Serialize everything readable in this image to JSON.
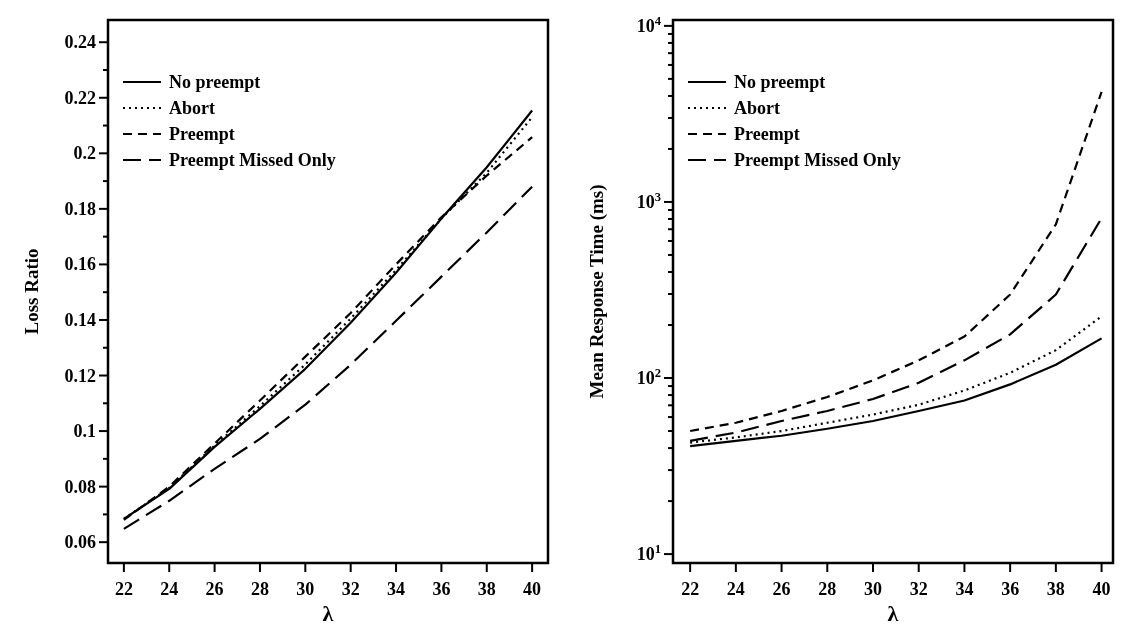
{
  "chart_data": [
    {
      "type": "line",
      "xlabel": "λ",
      "ylabel": "Loss Ratio",
      "x": [
        22,
        24,
        26,
        28,
        30,
        32,
        34,
        36,
        38,
        40
      ],
      "xlim": [
        21.3,
        40.7
      ],
      "xticks": [
        22,
        24,
        26,
        28,
        30,
        32,
        34,
        36,
        38,
        40
      ],
      "ylim": [
        0.0525,
        0.248
      ],
      "yticks": [
        0.06,
        {
          "value": 0.07,
          "label": null
        },
        0.08,
        {
          "value": 0.09,
          "label": null
        },
        0.1,
        {
          "value": 0.11,
          "label": null
        },
        0.12,
        {
          "value": 0.13,
          "label": null
        },
        0.14,
        {
          "value": 0.15,
          "label": null
        },
        0.16,
        {
          "value": 0.17,
          "label": null
        },
        0.18,
        {
          "value": 0.19,
          "label": null
        },
        0.2,
        {
          "value": 0.21,
          "label": null
        },
        0.22,
        {
          "value": 0.23,
          "label": null
        },
        0.24
      ],
      "grid": false,
      "legend": "top left",
      "series": [
        {
          "name": "No preempt",
          "color": "#000000",
          "line_style": "solid",
          "values": [
            0.0684,
            0.0792,
            0.0943,
            0.108,
            0.1224,
            0.139,
            0.157,
            0.1765,
            0.195,
            0.2154
          ]
        },
        {
          "name": "Abort",
          "color": "#000000",
          "line_style": "dotted",
          "values": [
            0.0684,
            0.0795,
            0.0948,
            0.109,
            0.124,
            0.1405,
            0.158,
            0.1765,
            0.193,
            0.213
          ]
        },
        {
          "name": "Preempt",
          "color": "#000000",
          "line_style": "dashed",
          "values": [
            0.068,
            0.08,
            0.0955,
            0.111,
            0.1268,
            0.1425,
            0.16,
            0.177,
            0.192,
            0.2058
          ]
        },
        {
          "name": "Preempt Missed Only",
          "color": "#000000",
          "line_style": "dashed",
          "values": [
            0.0648,
            0.0749,
            0.0864,
            0.0972,
            0.1095,
            0.1239,
            0.1397,
            0.1556,
            0.1715,
            0.188
          ]
        }
      ]
    },
    {
      "type": "line",
      "xlabel": "λ",
      "ylabel": "Mean Response Time (ms)",
      "log": "y",
      "x": [
        22,
        24,
        26,
        28,
        30,
        32,
        34,
        36,
        38,
        40
      ],
      "xlim": [
        21.25,
        40.5
      ],
      "xticks": [
        22,
        24,
        26,
        28,
        30,
        32,
        34,
        36,
        38,
        40
      ],
      "ylim": [
        8.9,
        10800
      ],
      "yticks": [
        {
          "value": 10,
          "label": "10$^{1}$"
        },
        {
          "value": 20,
          "label": null
        },
        {
          "value": 30,
          "label": null
        },
        {
          "value": 40,
          "label": null
        },
        {
          "value": 50,
          "label": null
        },
        {
          "value": 60,
          "label": null
        },
        {
          "value": 70,
          "label": null
        },
        {
          "value": 80,
          "label": null
        },
        {
          "value": 90,
          "label": null
        },
        {
          "value": 100,
          "label": "10$^{2}$"
        },
        {
          "value": 200,
          "label": null
        },
        {
          "value": 300,
          "label": null
        },
        {
          "value": 400,
          "label": null
        },
        {
          "value": 500,
          "label": null
        },
        {
          "value": 600,
          "label": null
        },
        {
          "value": 700,
          "label": null
        },
        {
          "value": 800,
          "label": null
        },
        {
          "value": 900,
          "label": null
        },
        {
          "value": 1000,
          "label": "10$^{3}$"
        },
        {
          "value": 2000,
          "label": null
        },
        {
          "value": 3000,
          "label": null
        },
        {
          "value": 4000,
          "label": null
        },
        {
          "value": 5000,
          "label": null
        },
        {
          "value": 6000,
          "label": null
        },
        {
          "value": 7000,
          "label": null
        },
        {
          "value": 8000,
          "label": null
        },
        {
          "value": 9000,
          "label": null
        },
        {
          "value": 10000,
          "label": "10$^{4}$"
        }
      ],
      "grid": false,
      "legend": "top left",
      "series": [
        {
          "name": "No preempt",
          "color": "#000000",
          "line_style": "solid",
          "values": [
            41,
            44,
            47,
            51.5,
            57,
            65,
            74.5,
            92,
            119,
            168
          ]
        },
        {
          "name": "Abort",
          "color": "#000000",
          "line_style": "dotted",
          "values": [
            43,
            46,
            50,
            55.7,
            62,
            70.5,
            85,
            107,
            144,
            224
          ]
        },
        {
          "name": "Preempt",
          "color": "#000000",
          "line_style": "dashed",
          "values": [
            50,
            55.7,
            65,
            78,
            97,
            126,
            172,
            298,
            746,
            4220
          ]
        },
        {
          "name": "Preempt Missed Only",
          "color": "#000000",
          "line_style": "dashed",
          "values": [
            44,
            49,
            57,
            65,
            76,
            94,
            126,
            177,
            298,
            809
          ]
        }
      ]
    }
  ]
}
